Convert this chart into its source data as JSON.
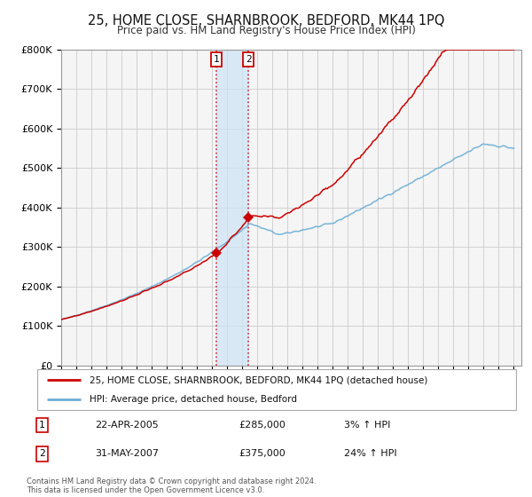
{
  "title": "25, HOME CLOSE, SHARNBROOK, BEDFORD, MK44 1PQ",
  "subtitle": "Price paid vs. HM Land Registry's House Price Index (HPI)",
  "ylim": [
    0,
    800000
  ],
  "yticks": [
    0,
    100000,
    200000,
    300000,
    400000,
    500000,
    600000,
    700000,
    800000
  ],
  "ytick_labels": [
    "£0",
    "£100K",
    "£200K",
    "£300K",
    "£400K",
    "£500K",
    "£600K",
    "£700K",
    "£800K"
  ],
  "hpi_color": "#6baed6",
  "price_color": "#cc0000",
  "sale1_year": 2005.29,
  "sale1_price": 285000,
  "sale2_year": 2007.42,
  "sale2_price": 375000,
  "shade_start": 2005.29,
  "shade_end": 2007.42,
  "xmin": 1995,
  "xmax": 2025.5,
  "legend_line1": "25, HOME CLOSE, SHARNBROOK, BEDFORD, MK44 1PQ (detached house)",
  "legend_line2": "HPI: Average price, detached house, Bedford",
  "table_row1_label": "1",
  "table_row1_date": "22-APR-2005",
  "table_row1_price": "£285,000",
  "table_row1_hpi": "3% ↑ HPI",
  "table_row2_label": "2",
  "table_row2_date": "31-MAY-2007",
  "table_row2_price": "£375,000",
  "table_row2_hpi": "24% ↑ HPI",
  "footnote1": "Contains HM Land Registry data © Crown copyright and database right 2024.",
  "footnote2": "This data is licensed under the Open Government Licence v3.0.",
  "background_color": "#ffffff",
  "grid_color": "#cccccc",
  "plot_bg_color": "#f5f5f5"
}
